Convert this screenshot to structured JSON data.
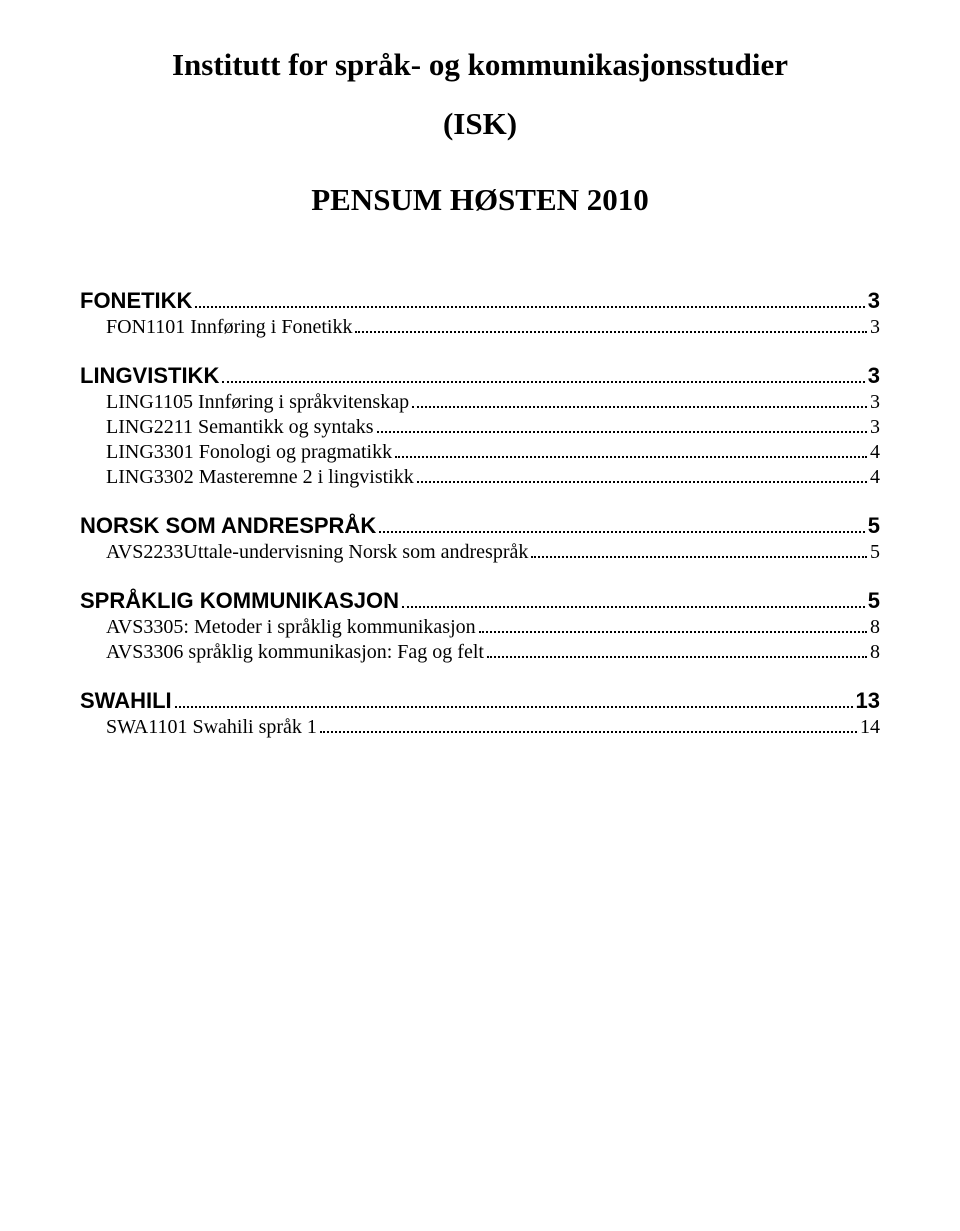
{
  "header": {
    "line1": "Institutt for språk- og kommunikasjonsstudier",
    "line2": "(ISK)",
    "pensum": "PENSUM HØSTEN 2010"
  },
  "toc": [
    {
      "type": "section",
      "label": "FONETIKK",
      "page": "3"
    },
    {
      "type": "sub",
      "label": "FON1101 Innføring i Fonetikk",
      "page": "3"
    },
    {
      "type": "gap"
    },
    {
      "type": "section",
      "label": "LINGVISTIKK",
      "page": "3"
    },
    {
      "type": "sub",
      "label": "LING1105 Innføring i språkvitenskap",
      "page": "3"
    },
    {
      "type": "sub",
      "label": "LING2211 Semantikk og syntaks",
      "page": "3"
    },
    {
      "type": "sub",
      "label": "LING3301 Fonologi og pragmatikk",
      "page": "4"
    },
    {
      "type": "sub",
      "label": "LING3302 Masteremne 2 i lingvistikk",
      "page": "4"
    },
    {
      "type": "gap"
    },
    {
      "type": "section",
      "label": "NORSK SOM ANDRESPRÅK",
      "page": "5"
    },
    {
      "type": "sub",
      "label": "AVS2233Uttale-undervisning Norsk som andrespråk",
      "page": "5"
    },
    {
      "type": "gap"
    },
    {
      "type": "section",
      "label": "SPRÅKLIG KOMMUNIKASJON",
      "page": "5"
    },
    {
      "type": "sub",
      "label": "AVS3305: Metoder i språklig kommunikasjon",
      "page": "8"
    },
    {
      "type": "sub",
      "label": "AVS3306 språklig kommunikasjon: Fag og felt",
      "page": "8"
    },
    {
      "type": "gap"
    },
    {
      "type": "section",
      "label": "SWAHILI",
      "page": "13"
    },
    {
      "type": "sub",
      "label": "SWA1101 Swahili språk 1",
      "page": "14"
    }
  ],
  "pages_fix": {
    "13": "14"
  }
}
